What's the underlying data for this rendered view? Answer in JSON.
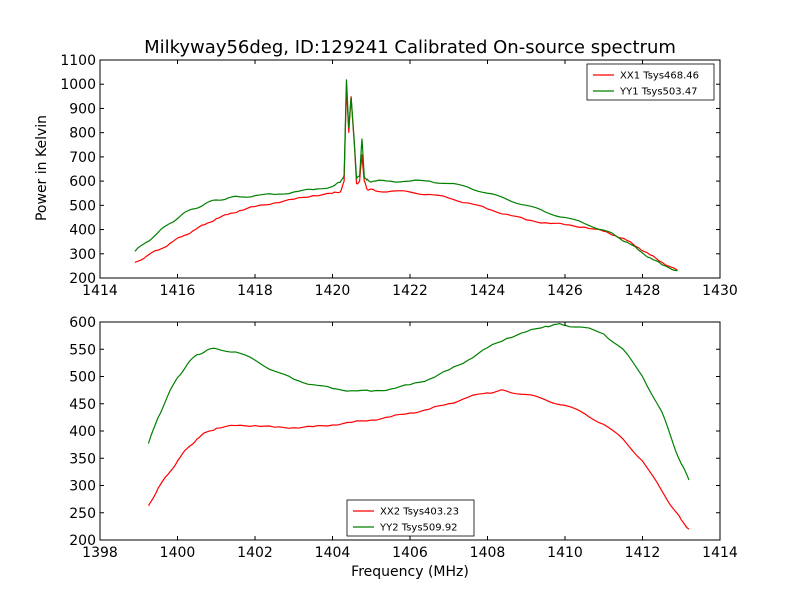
{
  "chart_data": [
    {
      "type": "line",
      "title": "Milkyway56deg, ID:129241 Calibrated On-source spectrum",
      "xlabel": "",
      "ylabel": "Power in Kelvin",
      "xlim": [
        1414,
        1430
      ],
      "ylim": [
        200,
        1100
      ],
      "xticks": [
        "1414",
        "1416",
        "1418",
        "1420",
        "1422",
        "1424",
        "1426",
        "1428",
        "1430"
      ],
      "yticks": [
        "200",
        "300",
        "400",
        "500",
        "600",
        "700",
        "800",
        "900",
        "1000",
        "1100"
      ],
      "grid": false,
      "legend_position": "top-right",
      "series": [
        {
          "name": "XX1 Tsys468.46",
          "color": "#ff0000",
          "x": [
            1414.9,
            1415.2,
            1415.5,
            1415.8,
            1416.1,
            1416.4,
            1416.7,
            1417.0,
            1417.3,
            1417.6,
            1418.0,
            1418.5,
            1419.0,
            1419.5,
            1420.0,
            1420.2,
            1420.3,
            1420.36,
            1420.42,
            1420.48,
            1420.56,
            1420.62,
            1420.7,
            1420.76,
            1420.82,
            1420.88,
            1420.95,
            1421.1,
            1421.5,
            1422.0,
            1422.5,
            1423.0,
            1423.5,
            1424.0,
            1424.5,
            1425.0,
            1425.5,
            1426.0,
            1426.5,
            1427.0,
            1427.3,
            1427.6,
            1427.9,
            1428.2,
            1428.5,
            1428.9
          ],
          "y": [
            265,
            290,
            315,
            342,
            370,
            395,
            420,
            445,
            462,
            478,
            495,
            510,
            525,
            540,
            550,
            555,
            600,
            990,
            800,
            950,
            760,
            590,
            600,
            710,
            600,
            570,
            565,
            560,
            558,
            555,
            545,
            530,
            510,
            485,
            463,
            440,
            428,
            420,
            410,
            393,
            375,
            355,
            325,
            295,
            265,
            233
          ]
        },
        {
          "name": "YY1 Tsys503.47",
          "color": "#008000",
          "x": [
            1414.9,
            1415.2,
            1415.5,
            1415.8,
            1416.1,
            1416.4,
            1416.7,
            1417.0,
            1417.3,
            1417.6,
            1418.0,
            1418.5,
            1419.0,
            1419.5,
            1420.0,
            1420.2,
            1420.3,
            1420.36,
            1420.42,
            1420.48,
            1420.56,
            1420.62,
            1420.7,
            1420.76,
            1420.82,
            1420.88,
            1420.95,
            1421.1,
            1421.5,
            1422.0,
            1422.5,
            1423.0,
            1423.5,
            1424.0,
            1424.5,
            1425.0,
            1425.5,
            1426.0,
            1426.5,
            1427.0,
            1427.3,
            1427.6,
            1427.9,
            1428.2,
            1428.5,
            1428.9
          ],
          "y": [
            310,
            348,
            388,
            425,
            460,
            485,
            505,
            522,
            530,
            535,
            540,
            545,
            555,
            565,
            578,
            595,
            625,
            1020,
            820,
            945,
            770,
            610,
            625,
            775,
            620,
            605,
            600,
            600,
            600,
            600,
            600,
            590,
            575,
            550,
            525,
            500,
            472,
            450,
            425,
            398,
            375,
            348,
            315,
            283,
            255,
            230
          ]
        }
      ]
    },
    {
      "type": "line",
      "title": "",
      "xlabel": "Frequency (MHz)",
      "ylabel": "",
      "xlim": [
        1398,
        1414
      ],
      "ylim": [
        200,
        600
      ],
      "xticks": [
        "1398",
        "1400",
        "1402",
        "1404",
        "1406",
        "1408",
        "1410",
        "1412",
        "1414"
      ],
      "yticks": [
        "200",
        "250",
        "300",
        "350",
        "400",
        "450",
        "500",
        "550",
        "600"
      ],
      "grid": false,
      "legend_position": "bottom-center",
      "series": [
        {
          "name": "XX2 Tsys403.23",
          "color": "#ff0000",
          "x": [
            1399.25,
            1399.5,
            1399.75,
            1400.0,
            1400.25,
            1400.5,
            1400.75,
            1401.0,
            1401.5,
            1402.0,
            1402.5,
            1403.0,
            1403.5,
            1404.0,
            1404.5,
            1405.0,
            1405.5,
            1406.0,
            1406.5,
            1407.0,
            1407.5,
            1408.0,
            1408.3,
            1408.5,
            1409.0,
            1409.5,
            1410.0,
            1410.5,
            1411.0,
            1411.5,
            1412.0,
            1412.5,
            1412.8,
            1413.0,
            1413.2
          ],
          "y": [
            263,
            295,
            320,
            345,
            368,
            385,
            398,
            405,
            410,
            410,
            407,
            406,
            408,
            411,
            416,
            420,
            426,
            433,
            440,
            450,
            462,
            470,
            474,
            473,
            467,
            457,
            447,
            432,
            412,
            385,
            345,
            290,
            257,
            237,
            220
          ]
        },
        {
          "name": "YY2 Tsys509.92",
          "color": "#008000",
          "x": [
            1399.25,
            1399.5,
            1399.75,
            1400.0,
            1400.25,
            1400.5,
            1400.75,
            1401.0,
            1401.5,
            1402.0,
            1402.5,
            1403.0,
            1403.5,
            1404.0,
            1404.5,
            1405.0,
            1405.5,
            1406.0,
            1406.5,
            1407.0,
            1407.5,
            1408.0,
            1408.5,
            1409.0,
            1409.5,
            1409.8,
            1410.0,
            1410.5,
            1411.0,
            1411.5,
            1412.0,
            1412.5,
            1412.8,
            1413.0,
            1413.2
          ],
          "y": [
            377,
            425,
            465,
            498,
            522,
            540,
            548,
            551,
            545,
            530,
            510,
            495,
            485,
            478,
            474,
            473,
            477,
            485,
            495,
            512,
            530,
            553,
            570,
            582,
            592,
            596,
            594,
            590,
            578,
            550,
            500,
            435,
            375,
            340,
            310
          ]
        }
      ]
    }
  ]
}
